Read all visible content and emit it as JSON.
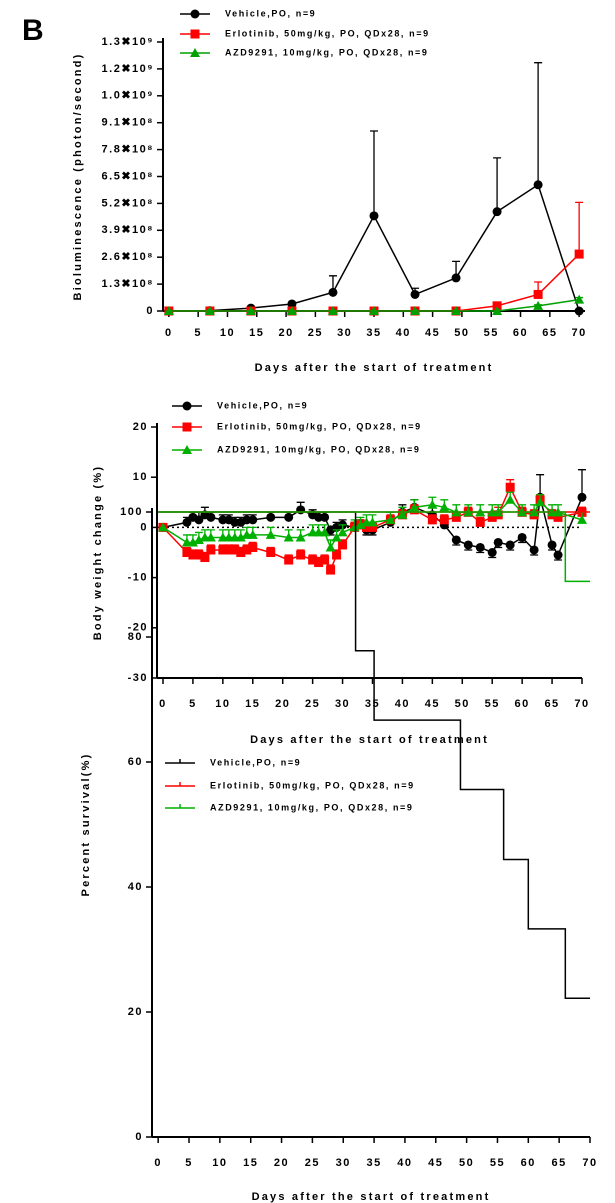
{
  "panel_label": "B",
  "chart_data": [
    {
      "type": "line",
      "x_label": "Days after the start of treatment",
      "y_label": "Bioluminescence (photon/second)",
      "x": [
        0,
        7,
        14,
        21,
        28,
        35,
        42,
        49,
        56,
        63,
        70
      ],
      "xlim": [
        -1,
        71
      ],
      "xticks": [
        0,
        5,
        10,
        15,
        20,
        25,
        30,
        35,
        40,
        45,
        50,
        55,
        60,
        65,
        70
      ],
      "ylim": [
        0,
        1300000000
      ],
      "yticks": [
        0,
        {
          "value": 130000000,
          "label": "1.3✖10⁸"
        },
        {
          "value": 260000000,
          "label": "2.6✖10⁸"
        },
        {
          "value": 390000000,
          "label": "3.9✖10⁸"
        },
        {
          "value": 520000000,
          "label": "5.2✖10⁸"
        },
        {
          "value": 650000000,
          "label": "6.5✖10⁸"
        },
        {
          "value": 780000000,
          "label": "7.8✖10⁸"
        },
        {
          "value": 910000000,
          "label": "9.1✖10⁸"
        },
        {
          "value": 1040000000,
          "label": "1.0✖10⁹"
        },
        {
          "value": 1170000000,
          "label": "1.2✖10⁹"
        },
        {
          "value": 1300000000,
          "label": "1.3✖10⁹"
        }
      ],
      "series": [
        {
          "name": "Vehicle,PO, n=9",
          "color": "#000000",
          "marker": "circle",
          "values": [
            0,
            2000000,
            14000000,
            34000000,
            90000000,
            460000000,
            80000000,
            160000000,
            480000000,
            610000000,
            0
          ],
          "errors": [
            0,
            1000000,
            3000000,
            5000000,
            80000000,
            410000000,
            30000000,
            80000000,
            260000000,
            590000000,
            0
          ]
        },
        {
          "name": "Erlotinib, 50mg/kg, PO, QDx28, n=9",
          "color": "#ff0000",
          "marker": "square",
          "values": [
            0,
            0,
            0,
            0,
            0,
            0,
            0,
            0,
            25000000,
            80000000,
            275000000
          ],
          "errors": [
            0,
            0,
            0,
            0,
            0,
            0,
            0,
            0,
            5000000,
            60000000,
            250000000
          ]
        },
        {
          "name": "AZD9291, 10mg/kg, PO, QDx28, n=9",
          "color": "#00a000",
          "marker": "triangle",
          "values": [
            0,
            0,
            0,
            0,
            0,
            0,
            0,
            0,
            0,
            25000000,
            55000000
          ],
          "errors": [
            0,
            0,
            0,
            0,
            0,
            0,
            0,
            0,
            0,
            5000000,
            10000000
          ]
        }
      ]
    },
    {
      "type": "line",
      "zero_line": true,
      "x_label": "Days after the start of treatment",
      "y_label": "Body weight change (%)",
      "x": [
        0,
        4,
        5,
        6,
        7,
        8,
        10,
        11,
        12,
        13,
        14,
        15,
        18,
        21,
        23,
        25,
        26,
        27,
        28,
        29,
        30,
        32,
        33,
        34,
        35,
        38,
        40,
        42,
        45,
        47,
        49,
        51,
        53,
        55,
        56,
        58,
        60,
        62,
        63,
        65,
        66,
        70
      ],
      "xlim": [
        -1,
        70
      ],
      "xticks": [
        0,
        5,
        10,
        15,
        20,
        25,
        30,
        35,
        40,
        45,
        50,
        55,
        60,
        65,
        70
      ],
      "ylim": [
        -30,
        20
      ],
      "yticks": [
        -30,
        -20,
        -10,
        0,
        10,
        20
      ],
      "series": [
        {
          "name": "Vehicle,PO, n=9",
          "color": "#000000",
          "marker": "circle",
          "values": [
            0,
            1,
            2,
            1.5,
            2.5,
            2,
            1.5,
            1.5,
            1,
            1,
            1.5,
            1.5,
            2,
            2,
            3.5,
            2.5,
            2,
            2,
            -0.5,
            0,
            0.5,
            0,
            0.5,
            -0.5,
            -0.5,
            1,
            3,
            4,
            2.5,
            0.5,
            -2.5,
            -3.5,
            -4,
            -5,
            -3,
            -3.5,
            -2,
            -4.5,
            6,
            -3.5,
            -5.5,
            6
          ],
          "errors": [
            0,
            1,
            1,
            1.5,
            1.5,
            1,
            1,
            1,
            1,
            1,
            1,
            1,
            1,
            1,
            1.5,
            1,
            1,
            1,
            1,
            1,
            1,
            1,
            1,
            1,
            1,
            1,
            1.5,
            1.5,
            1.5,
            1.5,
            1,
            1,
            1,
            1,
            1,
            1,
            1,
            1,
            4.5,
            1,
            1,
            5.5
          ]
        },
        {
          "name": "Erlotinib, 50mg/kg, PO, QDx28, n=9",
          "color": "#ff0000",
          "marker": "square",
          "values": [
            0,
            -5,
            -5.5,
            -5.5,
            -6,
            -4.5,
            -4.5,
            -4.5,
            -4.5,
            -5,
            -4.5,
            -4,
            -5,
            -6.5,
            -5.5,
            -6.5,
            -7,
            -6.5,
            -8.5,
            -5.5,
            -3.5,
            0,
            0.5,
            0,
            0,
            1.5,
            2.5,
            3.5,
            1.5,
            1.5,
            2,
            3,
            1,
            2,
            2.5,
            8,
            3,
            2.5,
            5.5,
            2.5,
            2,
            3
          ],
          "errors": [
            0,
            1,
            1,
            1,
            1,
            1,
            1,
            1,
            1,
            1,
            1,
            1,
            1,
            1,
            1,
            1,
            1,
            1,
            1,
            1,
            1,
            1,
            1,
            1,
            1,
            1,
            1,
            1,
            1,
            1,
            1,
            1,
            1,
            1,
            1.5,
            1.5,
            1,
            1,
            1,
            1,
            1,
            1
          ]
        },
        {
          "name": "AZD9291, 10mg/kg, PO, QDx28, n=9",
          "color": "#00b000",
          "marker": "triangle",
          "values": [
            0,
            -3,
            -3,
            -2.5,
            -2,
            -2,
            -2,
            -2,
            -2,
            -2,
            -1.5,
            -1.5,
            -1.5,
            -2,
            -2,
            -1,
            -1,
            -1,
            -4,
            -2,
            -1,
            0,
            0.5,
            1,
            1,
            1.5,
            2.5,
            4,
            4.5,
            4,
            3,
            3,
            3,
            3,
            3,
            5.5,
            3,
            3,
            5,
            3,
            3,
            1.5
          ],
          "errors": [
            0,
            1.5,
            1.5,
            1.5,
            1.5,
            1.5,
            1.5,
            1.5,
            1.5,
            1.5,
            1.5,
            1.5,
            1.5,
            1.5,
            1.5,
            1.5,
            1.5,
            1.5,
            1.5,
            1.5,
            1.5,
            1.5,
            1.5,
            1.5,
            1.5,
            1.5,
            1.5,
            1.5,
            1.5,
            1.5,
            1.5,
            1.5,
            1.5,
            1.5,
            1.5,
            1.5,
            1.5,
            1.5,
            1.5,
            1.5,
            1.5,
            1.5
          ]
        }
      ]
    },
    {
      "type": "step",
      "x_label": "Days after the start of treatment",
      "y_label": "Percent survival(%)",
      "xlim": [
        -1,
        70
      ],
      "xticks": [
        0,
        5,
        10,
        15,
        20,
        25,
        30,
        35,
        40,
        45,
        50,
        55,
        60,
        65,
        70
      ],
      "ylim": [
        0,
        100
      ],
      "yticks": [
        0,
        20,
        40,
        60,
        80,
        100
      ],
      "series": [
        {
          "name": "Vehicle,PO, n=9",
          "color": "#000000",
          "x": [
            0,
            32,
            35,
            49,
            56,
            60,
            66,
            70
          ],
          "values": [
            100,
            77.8,
            66.7,
            55.6,
            44.4,
            33.3,
            22.2,
            22.2
          ]
        },
        {
          "name": "Erlotinib, 50mg/kg, PO, QDx28, n=9",
          "color": "#ff0000",
          "x": [
            0,
            70
          ],
          "values": [
            100,
            100
          ]
        },
        {
          "name": "AZD9291, 10mg/kg, PO, QDx28, n=9",
          "color": "#00b000",
          "x": [
            0,
            66,
            70
          ],
          "values": [
            100,
            88.9,
            88.9
          ]
        }
      ]
    }
  ]
}
